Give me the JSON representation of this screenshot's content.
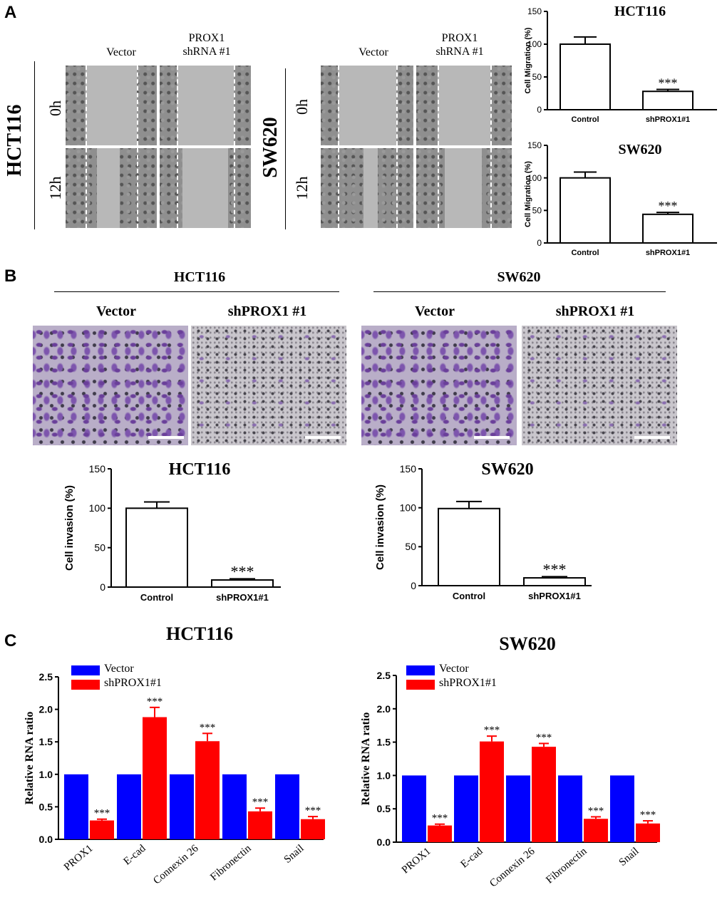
{
  "panels": {
    "a": "A",
    "b": "B",
    "c": "C"
  },
  "panelA": {
    "col_vector": "Vector",
    "col_shrna_line1": "PROX1",
    "col_shrna_line2": "shRNA #1",
    "hct_label": "HCT116",
    "sw_label": "SW620",
    "time_0h": "0h",
    "time_12h": "12h"
  },
  "panelB": {
    "hct_label": "HCT116",
    "sw_label": "SW620",
    "col_vector": "Vector",
    "col_sh": "shPROX1 #1"
  },
  "panelC": {
    "legend_vector": "Vector",
    "legend_sh": "shPROX1#1"
  },
  "colors": {
    "vector": "#0000ff",
    "sh": "#ff0000",
    "error_red": "#ff0000"
  },
  "chart_data": [
    {
      "id": "migration_hct116",
      "type": "bar",
      "title": "HCT116",
      "categories": [
        "Control",
        "shPROX1#1"
      ],
      "values": [
        100,
        28
      ],
      "errors": [
        11,
        3
      ],
      "significance": [
        "",
        "***"
      ],
      "ylabel": "Cell Migration (%)",
      "xlabel": "",
      "ylim": [
        0,
        150
      ],
      "yticks": [
        0,
        50,
        100,
        150
      ]
    },
    {
      "id": "migration_sw620",
      "type": "bar",
      "title": "SW620",
      "categories": [
        "Control",
        "shPROX1#1"
      ],
      "values": [
        100,
        44
      ],
      "errors": [
        9,
        3
      ],
      "significance": [
        "",
        "***"
      ],
      "ylabel": "Cell Migration (%)",
      "xlabel": "",
      "ylim": [
        0,
        150
      ],
      "yticks": [
        0,
        50,
        100,
        150
      ]
    },
    {
      "id": "invasion_hct116",
      "type": "bar",
      "title": "HCT116",
      "categories": [
        "Control",
        "shPROX1#1"
      ],
      "values": [
        100,
        9
      ],
      "errors": [
        8,
        1.5
      ],
      "significance": [
        "",
        "***"
      ],
      "ylabel": "Cell invasion (%)",
      "xlabel": "",
      "ylim": [
        0,
        150
      ],
      "yticks": [
        0,
        50,
        100,
        150
      ]
    },
    {
      "id": "invasion_sw620",
      "type": "bar",
      "title": "SW620",
      "categories": [
        "Control",
        "shPROX1#1"
      ],
      "values": [
        99,
        10
      ],
      "errors": [
        9,
        1.5
      ],
      "significance": [
        "",
        "***"
      ],
      "ylabel": "Cell invasion (%)",
      "xlabel": "",
      "ylim": [
        0,
        150
      ],
      "yticks": [
        0,
        50,
        100,
        150
      ]
    },
    {
      "id": "rna_hct116",
      "type": "bar",
      "title": "HCT116",
      "categories": [
        "PROX1",
        "E-cad",
        "Connexin 26",
        "Fibronectin",
        "Snail"
      ],
      "series": [
        {
          "name": "Vector",
          "values": [
            1.0,
            1.0,
            1.0,
            1.0,
            1.0
          ]
        },
        {
          "name": "shPROX1#1",
          "values": [
            0.29,
            1.88,
            1.51,
            0.43,
            0.31
          ],
          "errors": [
            0.02,
            0.15,
            0.12,
            0.05,
            0.04
          ],
          "significance": [
            "***",
            "***",
            "***",
            "***",
            "***"
          ]
        }
      ],
      "ylabel": "Relative RNA ratio",
      "xlabel": "",
      "ylim": [
        0,
        2.5
      ],
      "yticks": [
        "0.0",
        "0.5",
        "1.0",
        "1.5",
        "2.0",
        "2.5"
      ],
      "legend": "top-left"
    },
    {
      "id": "rna_sw620",
      "type": "bar",
      "title": "SW620",
      "categories": [
        "PROX1",
        "E-cad",
        "Connexin 26",
        "Fibronectin",
        "Snail"
      ],
      "series": [
        {
          "name": "Vector",
          "values": [
            1.0,
            1.0,
            1.0,
            1.0,
            1.0
          ]
        },
        {
          "name": "shPROX1#1",
          "values": [
            0.25,
            1.51,
            1.43,
            0.35,
            0.28
          ],
          "errors": [
            0.02,
            0.08,
            0.05,
            0.03,
            0.04
          ],
          "significance": [
            "***",
            "***",
            "***",
            "***",
            "***"
          ]
        }
      ],
      "ylabel": "Relative RNA ratio",
      "xlabel": "",
      "ylim": [
        0,
        2.5
      ],
      "yticks": [
        "0.0",
        "0.5",
        "1.0",
        "1.5",
        "2.0",
        "2.5"
      ],
      "legend": "top-left"
    }
  ]
}
